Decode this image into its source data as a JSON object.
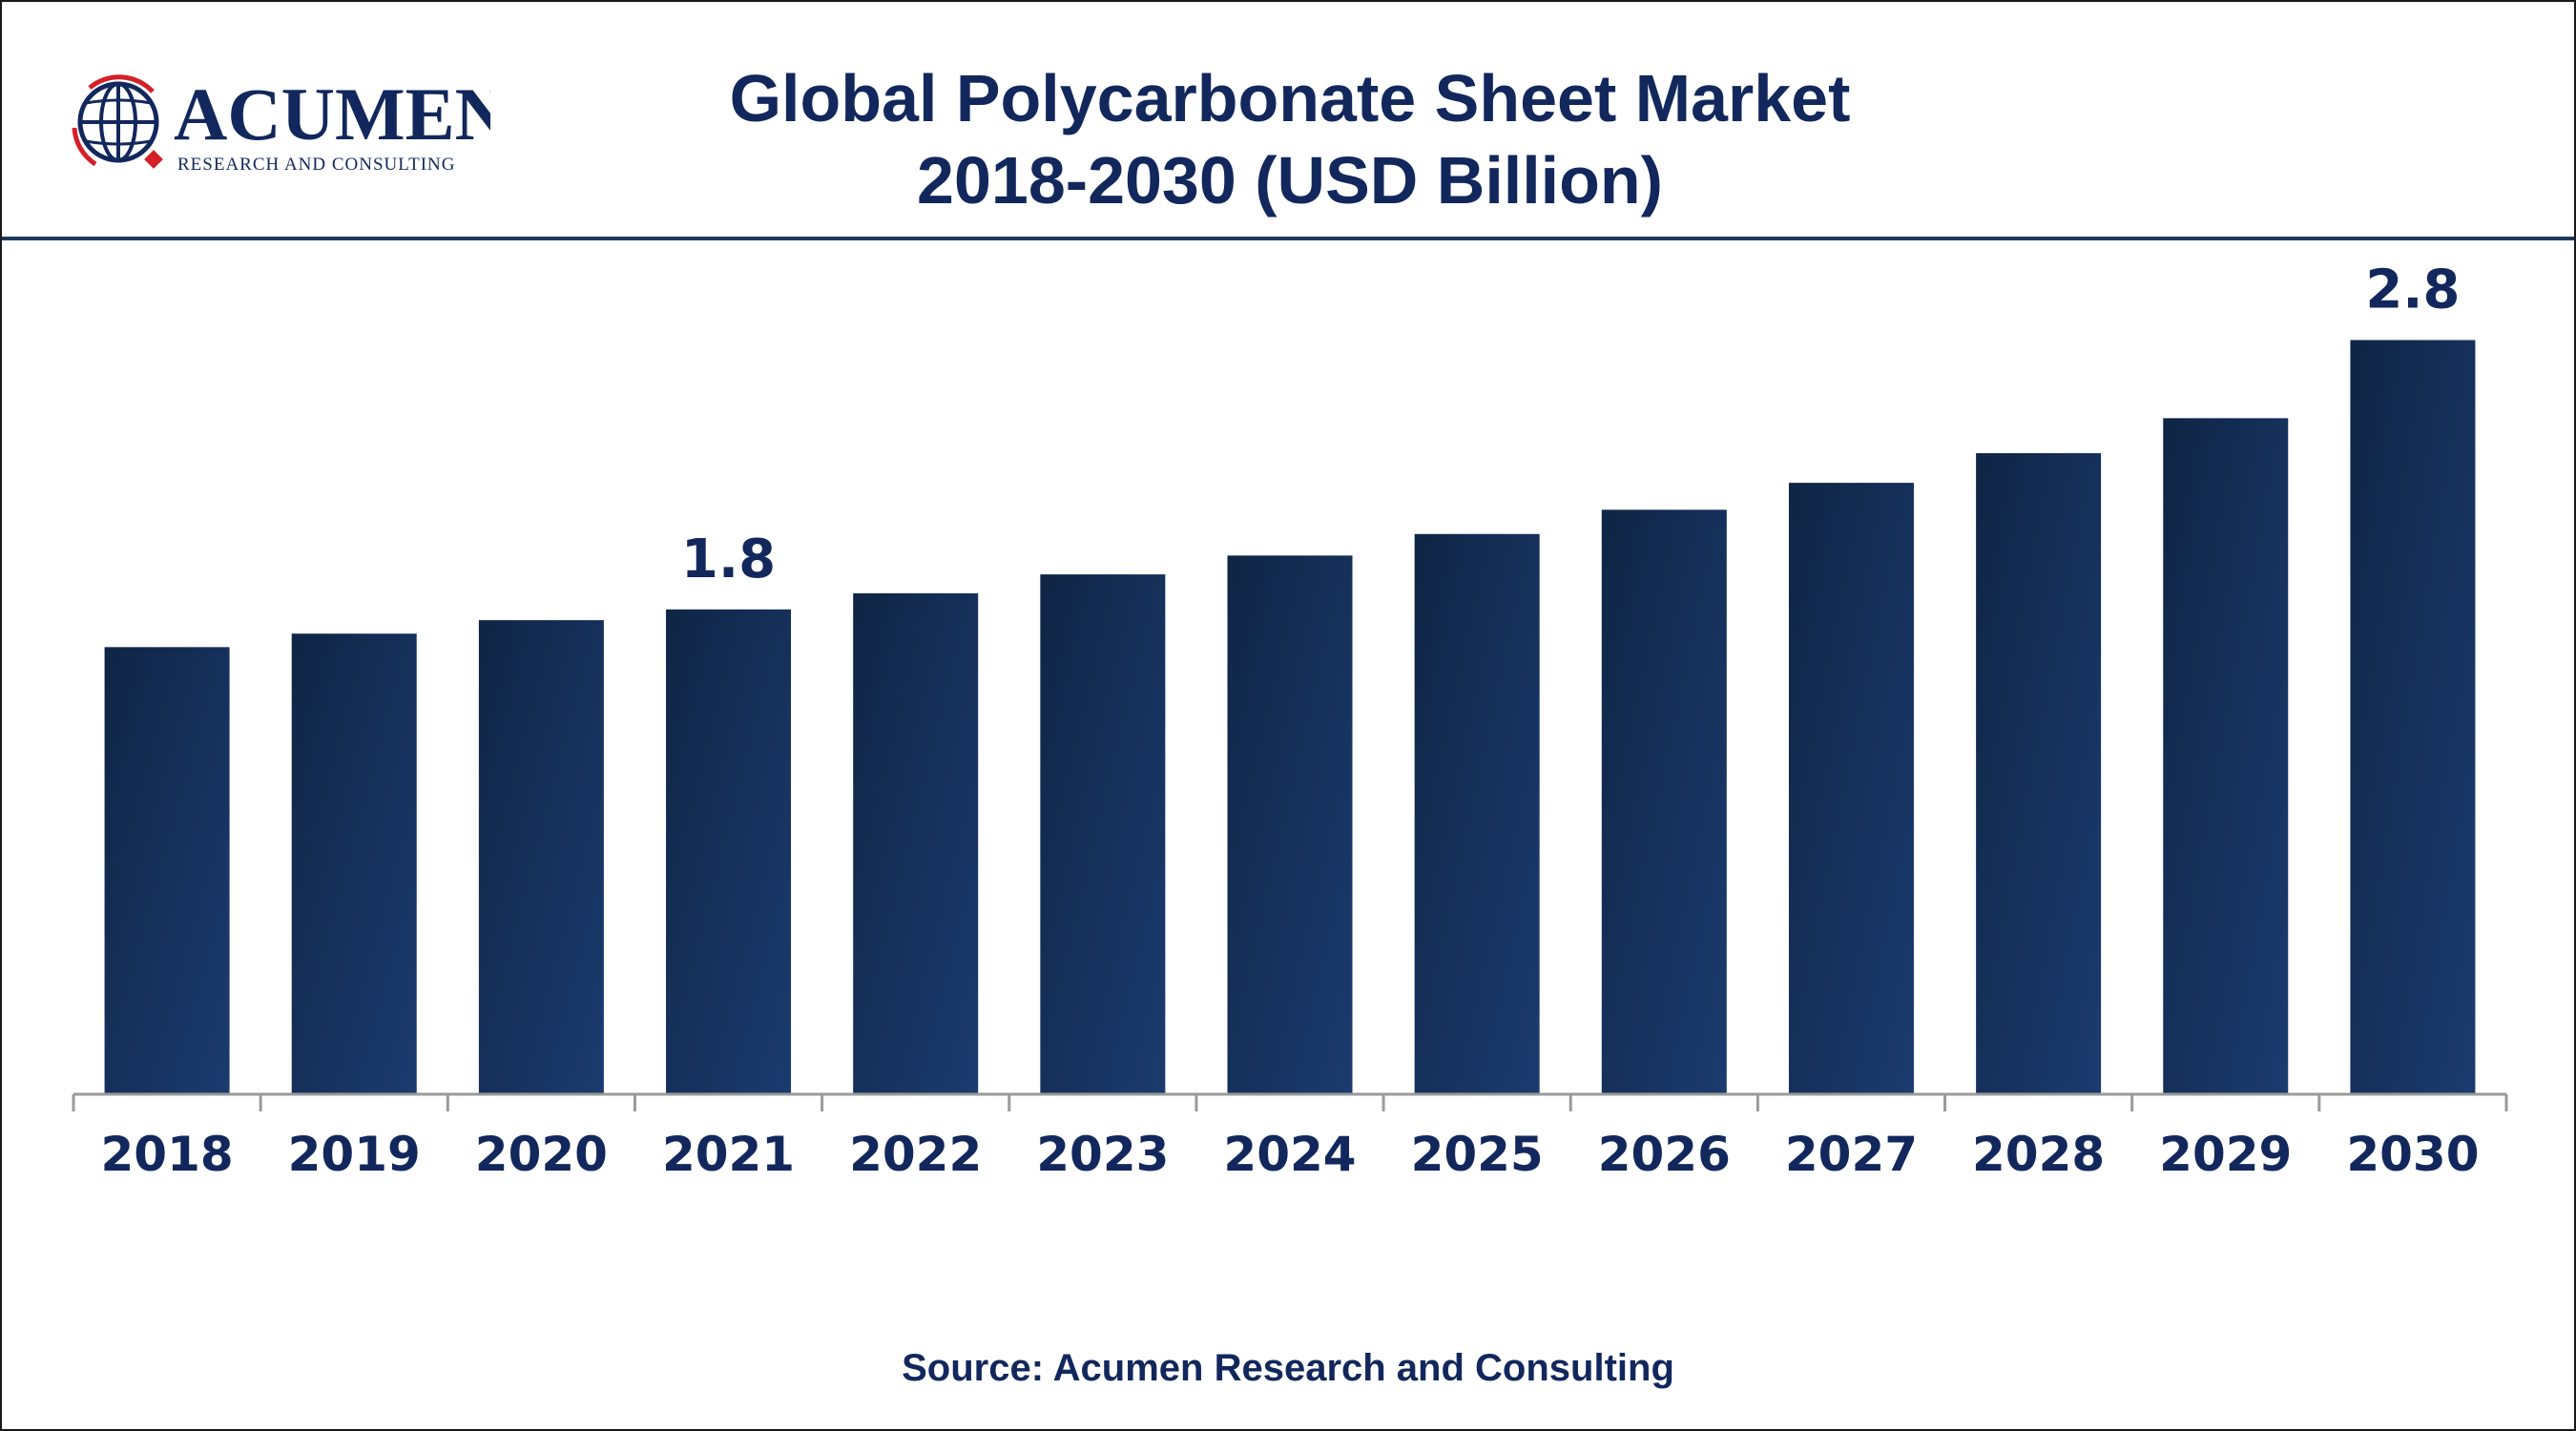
{
  "logo": {
    "name": "ACUMEN",
    "tagline": "RESEARCH AND CONSULTING",
    "icon": "globe-icon"
  },
  "header": {
    "title_line1": "Global Polycarbonate Sheet Market",
    "title_line2": "2018-2030 (USD Billion)"
  },
  "footer": {
    "source": "Source: Acumen Research and Consulting"
  },
  "colors": {
    "bar_dark": "#0f2545",
    "bar_light": "#1b3b6f",
    "text": "#12275c",
    "accent_red": "#d42027",
    "axis": "#9a9a9a"
  },
  "chart_data": {
    "type": "bar",
    "title": "Global Polycarbonate Sheet Market 2018-2030 (USD Billion)",
    "categories": [
      "2018",
      "2019",
      "2020",
      "2021",
      "2022",
      "2023",
      "2024",
      "2025",
      "2026",
      "2027",
      "2028",
      "2029",
      "2030"
    ],
    "values": [
      1.66,
      1.71,
      1.76,
      1.8,
      1.86,
      1.93,
      2.0,
      2.08,
      2.17,
      2.27,
      2.38,
      2.51,
      2.8
    ],
    "data_labels": [
      {
        "index": 3,
        "text": "1.8"
      },
      {
        "index": 12,
        "text": "2.8"
      }
    ],
    "xlabel": "",
    "ylabel": "",
    "ylim": [
      0,
      3.17
    ],
    "grid": false,
    "legend": "none"
  }
}
